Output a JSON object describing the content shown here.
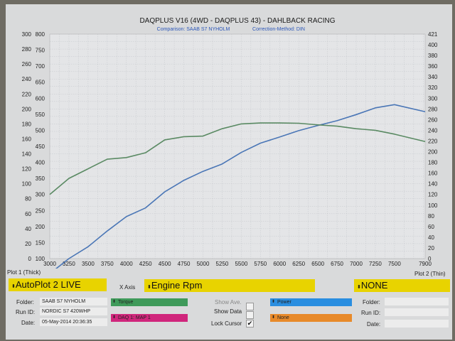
{
  "header": {
    "title": "DAQPLUS V16 (4WD - DAQPLUS 43) - DAHLBACK RACING",
    "comparison": "Comparison: SAAB S7 NYHOLM",
    "correction": "Correction-Method: DIN"
  },
  "chart_data": {
    "type": "line",
    "title": "DAQPLUS V16 (4WD - DAQPLUS 43) - DAHLBACK RACING",
    "x": [
      3000,
      3250,
      3500,
      3750,
      4000,
      4250,
      4500,
      4750,
      5000,
      5250,
      5500,
      5750,
      6000,
      6250,
      6500,
      6750,
      7000,
      7250,
      7500,
      7900
    ],
    "xlim": [
      3000,
      7900
    ],
    "x_ticks": [
      "3000",
      "3250",
      "3500",
      "3750",
      "4000",
      "4250",
      "4500",
      "4750",
      "5000",
      "5250",
      "5500",
      "5750",
      "6000",
      "6250",
      "6500",
      "6750",
      "7000",
      "7250",
      "7500",
      "7900"
    ],
    "left_outer_axis": {
      "range": [
        0,
        300
      ],
      "ticks": [
        "0",
        "20",
        "40",
        "60",
        "80",
        "100",
        "120",
        "140",
        "160",
        "180",
        "200",
        "220",
        "240",
        "260",
        "280",
        "300"
      ]
    },
    "left_inner_axis": {
      "range": [
        100,
        800
      ],
      "ticks": [
        "100",
        "150",
        "200",
        "250",
        "300",
        "350",
        "400",
        "450",
        "500",
        "550",
        "600",
        "650",
        "700",
        "750",
        "800"
      ]
    },
    "right_axis": {
      "range": [
        0,
        421
      ],
      "ticks": [
        "0",
        "20",
        "40",
        "60",
        "80",
        "100",
        "120",
        "140",
        "160",
        "180",
        "200",
        "220",
        "240",
        "260",
        "280",
        "300",
        "320",
        "340",
        "360",
        "380",
        "400",
        "421"
      ]
    },
    "series": [
      {
        "name": "Power",
        "color": "#4a76b6",
        "values": [
          53,
          100,
          137,
          186,
          231,
          258,
          308,
          344,
          372,
          395,
          431,
          460,
          479,
          499,
          515,
          530,
          549,
          570,
          580,
          558
        ]
      },
      {
        "name": "Torque",
        "color": "#5a8a63",
        "values": [
          300,
          350,
          380,
          410,
          415,
          430,
          470,
          480,
          482,
          505,
          520,
          523,
          523,
          522,
          517,
          513,
          505,
          500,
          488,
          465
        ]
      },
      {
        "name": "MAP 1",
        "color": "#cc3355",
        "values": [
          0,
          0,
          0,
          0,
          0,
          0,
          0,
          0,
          0,
          0,
          0,
          0,
          0,
          0,
          0,
          0,
          0,
          0,
          0,
          0
        ]
      }
    ],
    "grid": true
  },
  "panel": {
    "plot1_label": "Plot 1 (Thick)",
    "plot2_label": "Plot 2 (Thin)",
    "plot1_value": "AutoPlot 2 LIVE",
    "xaxis_label": "X Axis",
    "xaxis_value": "Engine Rpm",
    "plot2_value": "NONE",
    "folder_label": "Folder:",
    "folder_value": "SAAB S7 NYHOLM",
    "runid_label": "Run ID:",
    "runid_value": "NORDIC S7 420WHP",
    "date_label": "Date:",
    "date_value": "05-May-2014 20:36:35",
    "show_ave": "Show Ave.",
    "show_data": "Show Data",
    "lock_cursor": "Lock Cursor",
    "check_mark": "✔",
    "chip_torque": "Torque",
    "chip_map": "DAQ 1: MAP 1",
    "chip_power": "Power",
    "chip_none": "None",
    "folder2_label": "Folder:",
    "runid2_label": "Run ID:",
    "date2_label": "Date:",
    "colors": {
      "yellow": "#e8d300",
      "green_chip": "#3f9a5a",
      "magenta_chip": "#d0267c",
      "blue_chip": "#2a8ee0",
      "orange_chip": "#e88a2a"
    }
  }
}
